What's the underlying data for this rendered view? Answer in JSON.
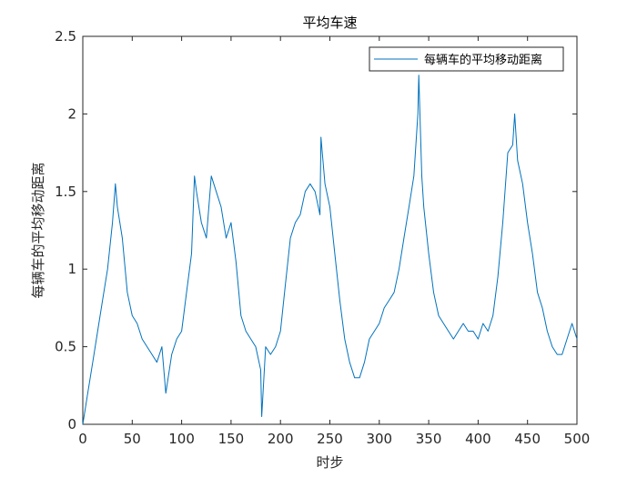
{
  "chart_data": {
    "type": "line",
    "title": "平均车速",
    "xlabel": "时步",
    "ylabel": "每辆车的平均移动距离",
    "xlim": [
      0,
      500
    ],
    "ylim": [
      0,
      2.5
    ],
    "xticks": [
      0,
      50,
      100,
      150,
      200,
      250,
      300,
      350,
      400,
      450,
      500
    ],
    "yticks": [
      0,
      0.5,
      1,
      1.5,
      2,
      2.5
    ],
    "ytick_labels": [
      "0",
      "0.5",
      "1",
      "1.5",
      "2",
      "2.5"
    ],
    "grid": false,
    "legend_position": "top-right",
    "series": [
      {
        "name": "每辆车的平均移动距离",
        "color": "#0072BD",
        "x": [
          0,
          5,
          10,
          15,
          20,
          25,
          30,
          33,
          35,
          40,
          45,
          50,
          55,
          60,
          65,
          70,
          75,
          80,
          84,
          90,
          95,
          100,
          105,
          110,
          113,
          115,
          120,
          125,
          130,
          135,
          140,
          145,
          150,
          155,
          160,
          165,
          170,
          175,
          180,
          181,
          185,
          190,
          195,
          200,
          205,
          210,
          215,
          220,
          225,
          230,
          235,
          240,
          241,
          245,
          250,
          255,
          260,
          265,
          270,
          275,
          280,
          285,
          290,
          295,
          300,
          305,
          310,
          315,
          320,
          325,
          330,
          335,
          339,
          340,
          343,
          345,
          350,
          355,
          360,
          365,
          370,
          375,
          380,
          385,
          390,
          395,
          400,
          405,
          410,
          415,
          420,
          425,
          430,
          435,
          437,
          440,
          445,
          450,
          455,
          460,
          465,
          470,
          475,
          480,
          485,
          490,
          495,
          500
        ],
        "y": [
          0.0,
          0.2,
          0.4,
          0.6,
          0.8,
          1.0,
          1.3,
          1.55,
          1.4,
          1.2,
          0.85,
          0.7,
          0.65,
          0.55,
          0.5,
          0.45,
          0.4,
          0.5,
          0.2,
          0.45,
          0.55,
          0.6,
          0.85,
          1.1,
          1.6,
          1.5,
          1.3,
          1.2,
          1.6,
          1.5,
          1.4,
          1.2,
          1.3,
          1.05,
          0.7,
          0.6,
          0.55,
          0.5,
          0.35,
          0.05,
          0.5,
          0.45,
          0.5,
          0.6,
          0.9,
          1.2,
          1.3,
          1.35,
          1.5,
          1.55,
          1.5,
          1.35,
          1.85,
          1.55,
          1.4,
          1.1,
          0.8,
          0.55,
          0.4,
          0.3,
          0.3,
          0.4,
          0.55,
          0.6,
          0.65,
          0.75,
          0.8,
          0.85,
          1.0,
          1.2,
          1.4,
          1.6,
          2.0,
          2.25,
          1.6,
          1.4,
          1.1,
          0.85,
          0.7,
          0.65,
          0.6,
          0.55,
          0.6,
          0.65,
          0.6,
          0.6,
          0.55,
          0.65,
          0.6,
          0.7,
          0.95,
          1.3,
          1.75,
          1.8,
          2.0,
          1.7,
          1.55,
          1.3,
          1.1,
          0.85,
          0.75,
          0.6,
          0.5,
          0.45,
          0.45,
          0.55,
          0.65,
          0.55
        ]
      }
    ]
  }
}
